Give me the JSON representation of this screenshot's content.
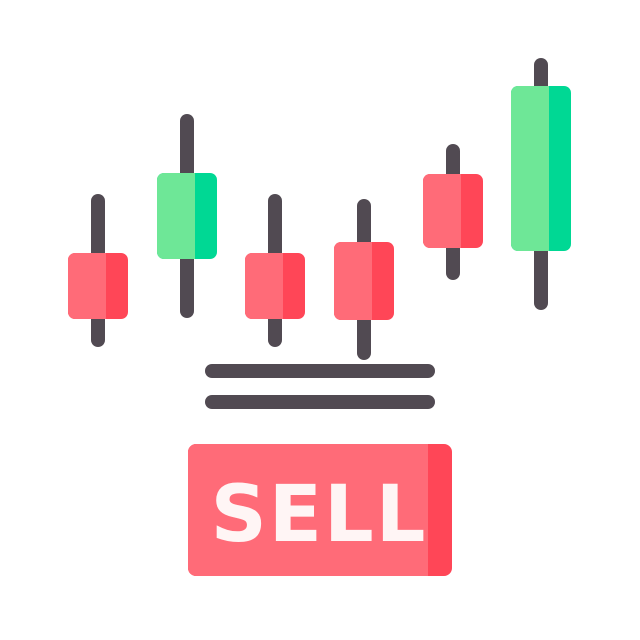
{
  "colors": {
    "background": "#ffffff",
    "wick": "#514a52",
    "bearish_light": "#ff6b78",
    "bearish_dark": "#ff4657",
    "bullish_light": "#6ee797",
    "bullish_dark": "#00d894",
    "lines": "#514a52",
    "button_light": "#ff6b78",
    "button_dark": "#ff4657",
    "button_text": "#fff5f5"
  },
  "candles": [
    {
      "trend": "bearish"
    },
    {
      "trend": "bullish"
    },
    {
      "trend": "bearish"
    },
    {
      "trend": "bearish"
    },
    {
      "trend": "bearish"
    },
    {
      "trend": "bullish"
    }
  ],
  "button": {
    "label": "SELL"
  }
}
